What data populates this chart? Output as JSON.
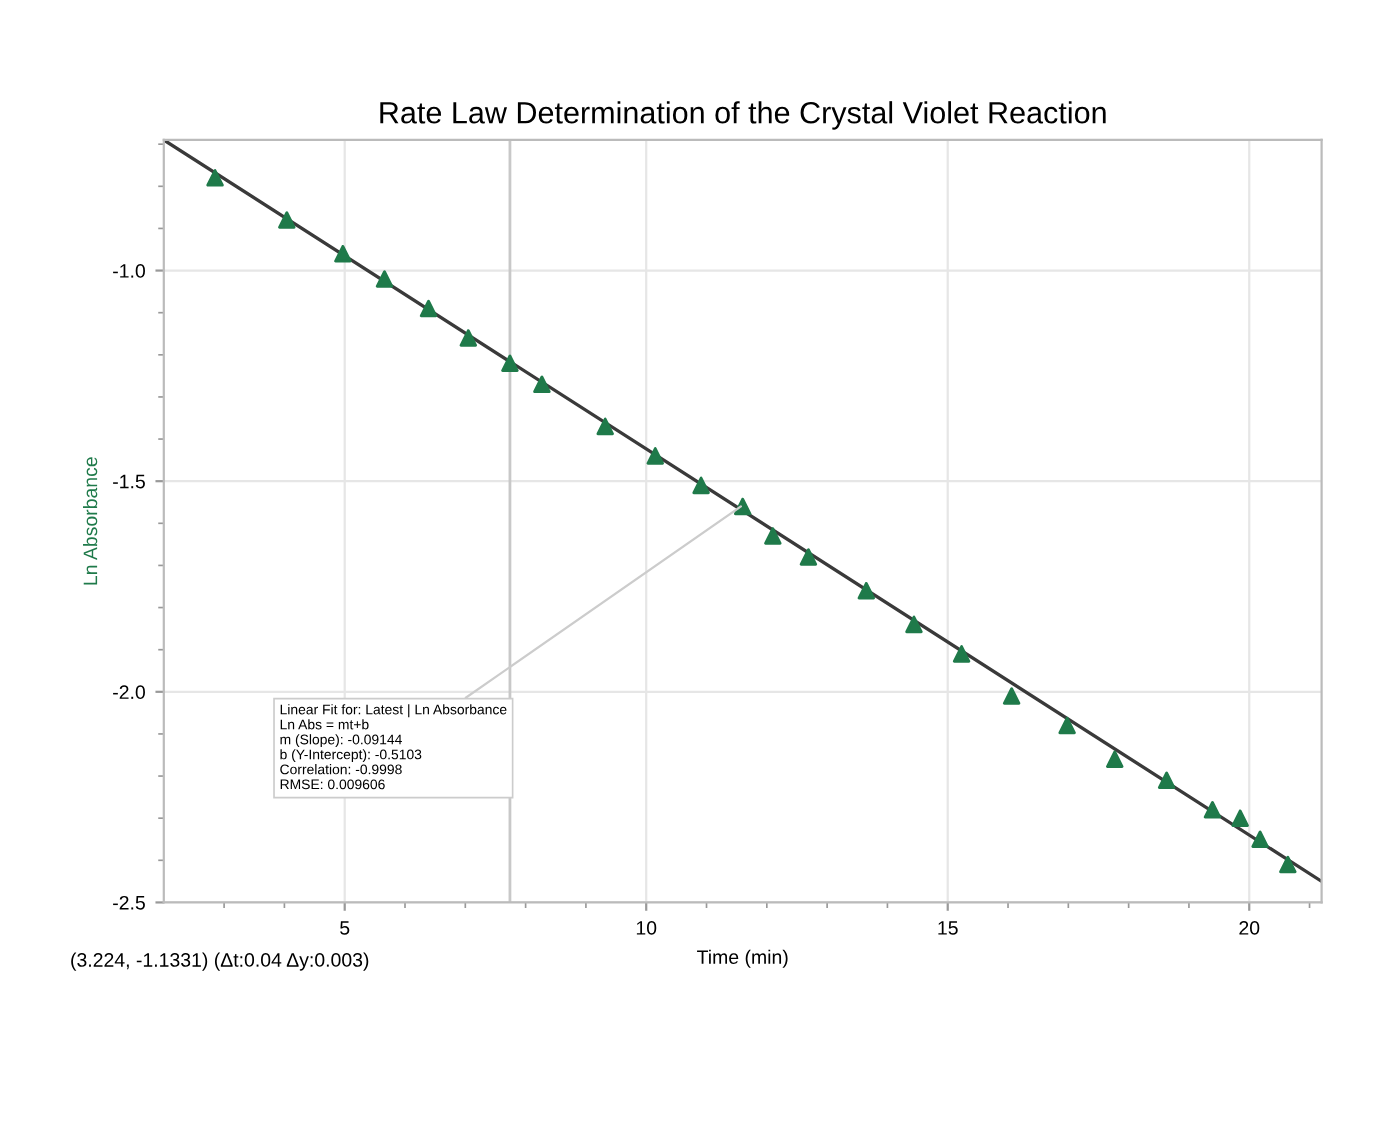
{
  "chart_data": {
    "type": "scatter",
    "title": "Rate Law Determination of the Crystal Violet Reaction",
    "xlabel": "Time (min)",
    "ylabel": "Ln Absorbance",
    "series": [
      {
        "color": "#1f7a4a",
        "marker": "triangle",
        "x": [
          2.85,
          4.04,
          4.97,
          5.66,
          6.39,
          7.05,
          7.74,
          8.27,
          9.32,
          10.15,
          10.91,
          11.6,
          12.1,
          12.69,
          13.65,
          14.44,
          15.23,
          16.06,
          16.98,
          17.77,
          18.63,
          19.39,
          19.85,
          20.18,
          20.64
        ],
        "values": [
          -0.78,
          -0.88,
          -0.96,
          -1.02,
          -1.09,
          -1.16,
          -1.22,
          -1.27,
          -1.37,
          -1.44,
          -1.51,
          -1.56,
          -1.63,
          -1.68,
          -1.76,
          -1.84,
          -1.91,
          -2.01,
          -2.08,
          -2.16,
          -2.21,
          -2.28,
          -2.3,
          -2.35,
          -2.41
        ]
      },
      {
        "type": "line",
        "color": "#3a3a3a",
        "marker": "none",
        "x": [
          2.0,
          21.2
        ],
        "values": [
          -0.69,
          -2.45
        ]
      }
    ],
    "xlim": [
      2.0,
      21.2
    ],
    "ylim": [
      -2.5,
      -0.69
    ],
    "xticks": [
      {
        "value": 3,
        "label": null
      },
      {
        "value": 4,
        "label": null
      },
      5,
      {
        "value": 6,
        "label": null
      },
      {
        "value": 7,
        "label": null
      },
      {
        "value": 8,
        "label": null
      },
      {
        "value": 9,
        "label": null
      },
      10,
      {
        "value": 11,
        "label": null
      },
      {
        "value": 12,
        "label": null
      },
      {
        "value": 13,
        "label": null
      },
      {
        "value": 14,
        "label": null
      },
      15,
      {
        "value": 16,
        "label": null
      },
      {
        "value": 17,
        "label": null
      },
      {
        "value": 18,
        "label": null
      },
      {
        "value": 19,
        "label": null
      },
      20,
      {
        "value": 21,
        "label": null
      }
    ],
    "yticks": [
      {
        "value": -2.5,
        "label": "-2.5"
      },
      {
        "value": -2.4,
        "label": null
      },
      {
        "value": -2.3,
        "label": null
      },
      {
        "value": -2.2,
        "label": null
      },
      {
        "value": -2.1,
        "label": null
      },
      {
        "value": -2.0,
        "label": "-2.0"
      },
      {
        "value": -1.9,
        "label": null
      },
      {
        "value": -1.8,
        "label": null
      },
      {
        "value": -1.7,
        "label": null
      },
      {
        "value": -1.6,
        "label": null
      },
      {
        "value": -1.5,
        "label": "-1.5"
      },
      {
        "value": -1.4,
        "label": null
      },
      {
        "value": -1.3,
        "label": null
      },
      {
        "value": -1.2,
        "label": null
      },
      {
        "value": -1.1,
        "label": null
      },
      {
        "value": -1.0,
        "label": "-1.0"
      },
      {
        "value": -0.9,
        "label": null
      },
      {
        "value": -0.8,
        "label": null
      },
      {
        "value": -0.7,
        "label": null
      }
    ],
    "ref_lines": [
      {
        "axis": "x",
        "value": 7.74,
        "label": null,
        "color": "#c8c8c8"
      }
    ],
    "annotations": [
      {
        "text": "Linear Fit for: Latest | Ln Absorbance\nLn Abs = mt+b\nm (Slope): -0.09144\nb (Y-Intercept): -0.5103\nCorrelation: -0.9998\nRMSE: 0.009606",
        "x": 11.57,
        "y": -1.56
      },
      "(3.224, -1.1331) (Δt:0.04 Δy:0.003)"
    ],
    "grid": true,
    "legend": false
  }
}
